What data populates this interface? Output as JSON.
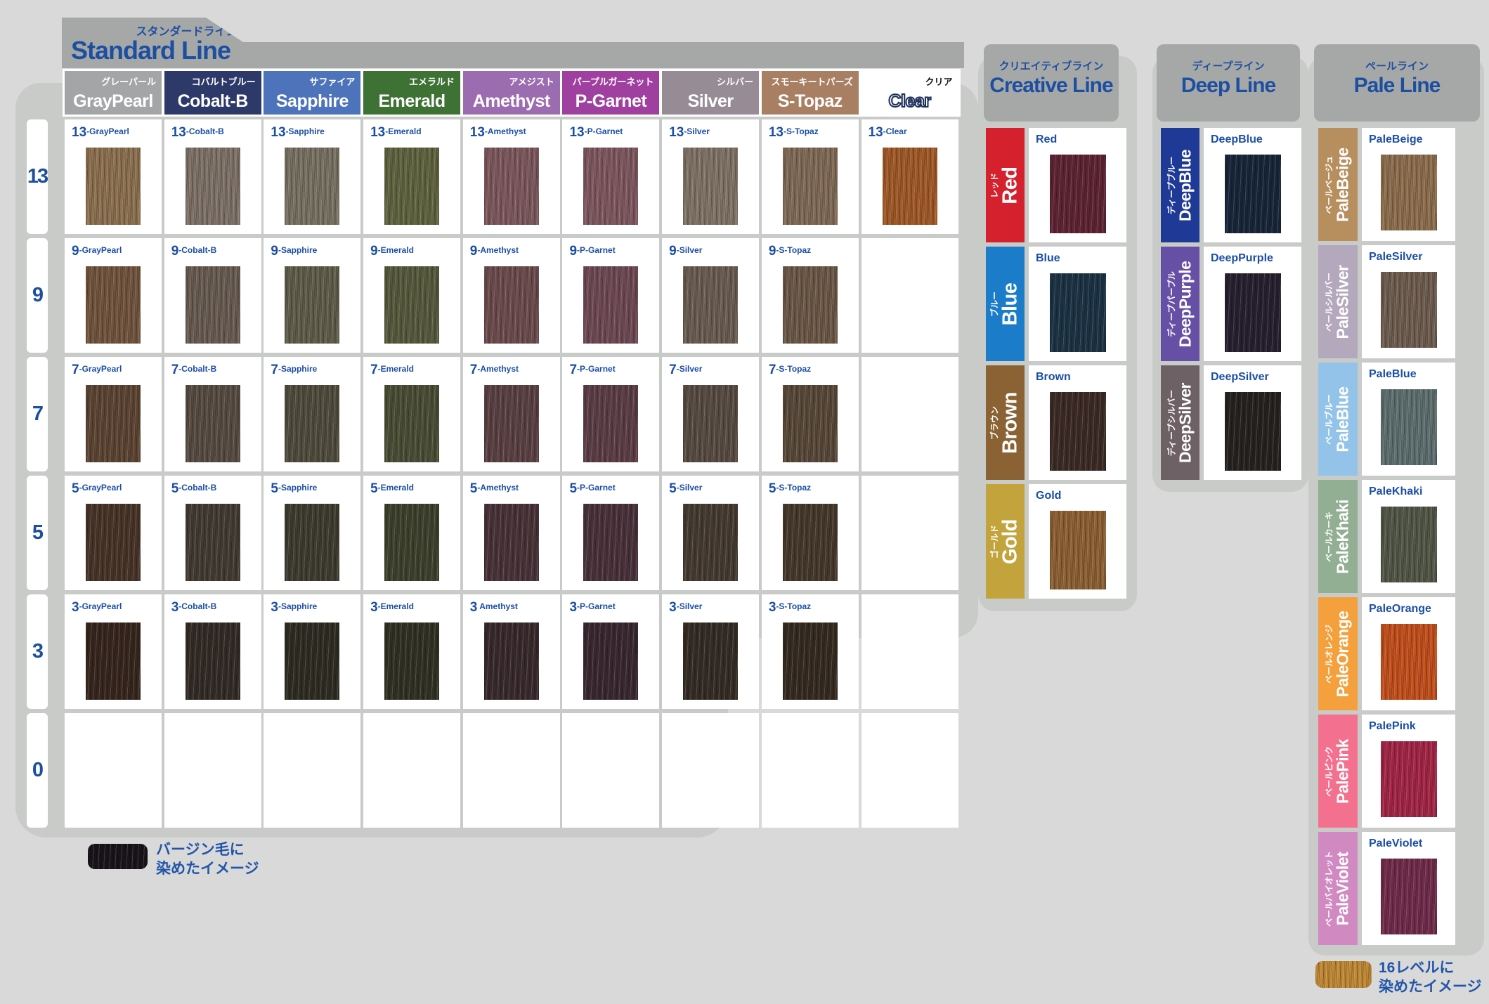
{
  "palette": {
    "page_bg": "#d8d9d8",
    "banner_gray": "#a6a8a7",
    "shadow_gray": "#c9cbc9",
    "title_blue": "#1d4fa0",
    "label_blue": "#1c4ea6"
  },
  "standard": {
    "tagline_jp": "スタンダードライン",
    "title": "Standard Line",
    "columns": [
      {
        "name": "GrayPearl",
        "jp": "グレーパール",
        "header_bg": "#a3a5a7"
      },
      {
        "name": "Cobalt-B",
        "jp": "コバルトブルー",
        "header_bg": "#2d3a69"
      },
      {
        "name": "Sapphire",
        "jp": "サファイア",
        "header_bg": "#4d73ba"
      },
      {
        "name": "Emerald",
        "jp": "エメラルド",
        "header_bg": "#3e7134"
      },
      {
        "name": "Amethyst",
        "jp": "アメジスト",
        "header_bg": "#9c6cb0"
      },
      {
        "name": "P-Garnet",
        "jp": "パープルガーネット",
        "header_bg": "#9f3f9f"
      },
      {
        "name": "Silver",
        "jp": "シルバー",
        "header_bg": "#978b96"
      },
      {
        "name": "S-Topaz",
        "jp": "スモーキートパーズ",
        "header_bg": "#a87f63"
      },
      {
        "name": "Clear",
        "jp": "クリア",
        "header_bg": "#ffffff",
        "outline": true
      }
    ],
    "levels": [
      "13",
      "9",
      "7",
      "5",
      "3",
      "0"
    ],
    "cells": [
      [
        {
          "label": "13-GrayPearl",
          "color": "#8d7150"
        },
        {
          "label": "13-Cobalt-B",
          "color": "#7f7268"
        },
        {
          "label": "13-Sapphire",
          "color": "#797263"
        },
        {
          "label": "13-Emerald",
          "color": "#616440"
        },
        {
          "label": "13-Amethyst",
          "color": "#7d595e"
        },
        {
          "label": "13-P-Garnet",
          "color": "#7f5860"
        },
        {
          "label": "13-Silver",
          "color": "#817367"
        },
        {
          "label": "13-S-Topaz",
          "color": "#816b57"
        },
        {
          "label": "13-Clear",
          "color": "#a15a28"
        }
      ],
      [
        {
          "label": "9-GrayPearl",
          "color": "#72553e"
        },
        {
          "label": "9-Cobalt-B",
          "color": "#695c52"
        },
        {
          "label": "9-Sapphire",
          "color": "#615d4b"
        },
        {
          "label": "9-Emerald",
          "color": "#575a3d"
        },
        {
          "label": "9-Amethyst",
          "color": "#6d4c4e"
        },
        {
          "label": "9-P-Garnet",
          "color": "#6f4a54"
        },
        {
          "label": "9-Silver",
          "color": "#6b5d52"
        },
        {
          "label": "9-S-Topaz",
          "color": "#6c5947"
        },
        null
      ],
      [
        {
          "label": "7-GrayPearl",
          "color": "#5d4533"
        },
        {
          "label": "7-Cobalt-B",
          "color": "#574c42"
        },
        {
          "label": "7-Sapphire",
          "color": "#504d3e"
        },
        {
          "label": "7-Emerald",
          "color": "#4b4e36"
        },
        {
          "label": "7-Amethyst",
          "color": "#5b4144"
        },
        {
          "label": "7-P-Garnet",
          "color": "#5d3e47"
        },
        {
          "label": "7-Silver",
          "color": "#584c43"
        },
        {
          "label": "7-S-Topaz",
          "color": "#59493a"
        },
        null
      ],
      [
        {
          "label": "5-GrayPearl",
          "color": "#483428"
        },
        {
          "label": "5-Cobalt-B",
          "color": "#443b33"
        },
        {
          "label": "5-Sapphire",
          "color": "#3f3c30"
        },
        {
          "label": "5-Emerald",
          "color": "#3e412d"
        },
        {
          "label": "5-Amethyst",
          "color": "#493339"
        },
        {
          "label": "5-P-Garnet",
          "color": "#4a323b"
        },
        {
          "label": "5-Silver",
          "color": "#463b32"
        },
        {
          "label": "5-S-Topaz",
          "color": "#46392c"
        },
        null
      ],
      [
        {
          "label": "3-GrayPearl",
          "color": "#37261e"
        },
        {
          "label": "3-Cobalt-B",
          "color": "#332c26"
        },
        {
          "label": "3-Sapphire",
          "color": "#2f2d23"
        },
        {
          "label": "3-Emerald",
          "color": "#313124"
        },
        {
          "label": "3 Amethyst",
          "color": "#392a2d"
        },
        {
          "label": "3-P-Garnet",
          "color": "#3a2830"
        },
        {
          "label": "3-Silver",
          "color": "#352c25"
        },
        {
          "label": "3-S-Topaz",
          "color": "#362b21"
        },
        null
      ],
      [
        null,
        null,
        null,
        null,
        null,
        null,
        null,
        null,
        null
      ]
    ]
  },
  "creative": {
    "tagline_jp": "クリエイティブライン",
    "title": "Creative Line",
    "rows": [
      {
        "name": "Red",
        "jp": "レッド",
        "tab": "#d5202e",
        "swatch": "#5f2433"
      },
      {
        "name": "Blue",
        "jp": "ブルー",
        "tab": "#1b7dc9",
        "swatch": "#1c3345"
      },
      {
        "name": "Brown",
        "jp": "ブラウン",
        "tab": "#8a6233",
        "swatch": "#3c2b25"
      },
      {
        "name": "Gold",
        "jp": "ゴールド",
        "tab": "#c2a33c",
        "swatch": "#8d6134"
      }
    ]
  },
  "deep": {
    "tagline_jp": "ディープライン",
    "title": "Deep Line",
    "rows": [
      {
        "name": "DeepBlue",
        "jp": "ディープブルー",
        "tab": "#1e3a96",
        "swatch": "#182639"
      },
      {
        "name": "DeepPurple",
        "jp": "ディープパープル",
        "tab": "#6550a5",
        "swatch": "#272030"
      },
      {
        "name": "DeepSilver",
        "jp": "ディープシルバー",
        "tab": "#6e6166",
        "swatch": "#26221f"
      }
    ]
  },
  "pale": {
    "tagline_jp": "ペールライン",
    "title": "Pale Line",
    "rows": [
      {
        "name": "PaleBeige",
        "jp": "ペールベージュ",
        "tab": "#b78f5f",
        "swatch": "#8d6f4e"
      },
      {
        "name": "PaleSilver",
        "jp": "ペールシルバー",
        "tab": "#b4a8bc",
        "swatch": "#6f5d50"
      },
      {
        "name": "PaleBlue",
        "jp": "ペールブルー",
        "tab": "#93c3e9",
        "swatch": "#5e6f6f"
      },
      {
        "name": "PaleKhaki",
        "jp": "ペールカーキ",
        "tab": "#92ae93",
        "swatch": "#525748"
      },
      {
        "name": "PaleOrange",
        "jp": "ペールオレンジ",
        "tab": "#f4a03c",
        "swatch": "#c3501d"
      },
      {
        "name": "PalePink",
        "jp": "ペールピンク",
        "tab": "#f3718f",
        "swatch": "#a42647"
      },
      {
        "name": "PaleViolet",
        "jp": "ペールバイオレット",
        "tab": "#d189c2",
        "swatch": "#712c4b"
      }
    ]
  },
  "legends": {
    "virgin": {
      "color": "#19141a",
      "line1": "バージン毛に",
      "line2": "染めたイメージ"
    },
    "level16": {
      "color": "#c08936",
      "line1": "16レベルに",
      "line2": "染めたイメージ"
    }
  }
}
